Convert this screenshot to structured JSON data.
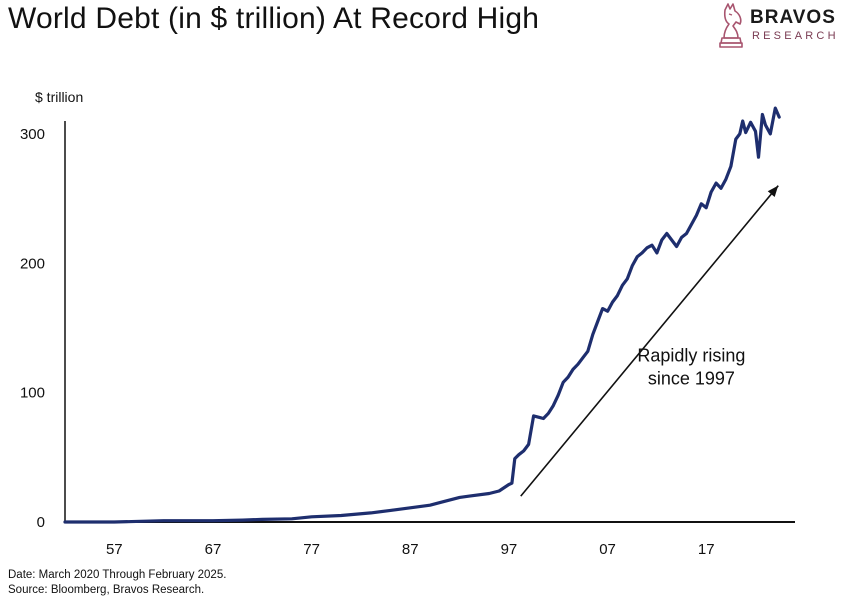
{
  "title": "World Debt (in $ trillion) At Record High",
  "brand": {
    "name": "BRAVOS",
    "sub": "RESEARCH",
    "accent_color": "#a8556f",
    "icon": "horse-chess-knight-icon"
  },
  "chart_data": {
    "type": "line",
    "ylabel": "$ trillion",
    "ylim": [
      0,
      310
    ],
    "xlim": [
      1952,
      2026
    ],
    "yticks": [
      0,
      100,
      200,
      300
    ],
    "xtick_values": [
      1957,
      1967,
      1977,
      1987,
      1997,
      2007,
      2017
    ],
    "xtick_labels": [
      "57",
      "67",
      "77",
      "87",
      "97",
      "07",
      "17"
    ],
    "grid": false,
    "line_color": "#1e2e6e",
    "series": [
      {
        "name": "",
        "x": [
          1952,
          1957,
          1962,
          1967,
          1970,
          1972,
          1975,
          1977,
          1980,
          1983,
          1985,
          1987,
          1989,
          1990,
          1992,
          1993,
          1995,
          1996,
          1997,
          1997.3,
          1997.6,
          1998,
          1998.5,
          1999,
          1999.5,
          2000,
          2000.5,
          2001,
          2001.5,
          2002,
          2002.5,
          2003,
          2003.5,
          2004,
          2004.5,
          2005,
          2005.5,
          2006,
          2006.5,
          2007,
          2007.5,
          2008,
          2008.5,
          2009,
          2009.5,
          2010,
          2010.5,
          2011,
          2011.5,
          2012,
          2012.5,
          2013,
          2013.5,
          2014,
          2014.5,
          2015,
          2015.5,
          2016,
          2016.5,
          2017,
          2017.5,
          2018,
          2018.5,
          2019,
          2019.5,
          2020,
          2020.4,
          2020.7,
          2021,
          2021.5,
          2022,
          2022.3,
          2022.7,
          2023,
          2023.5,
          2024,
          2024.4
        ],
        "values": [
          0,
          0,
          1,
          1,
          1.5,
          2,
          2.5,
          4,
          5,
          7,
          9,
          11,
          13,
          15,
          19,
          20,
          22,
          24,
          29,
          30,
          49,
          52,
          55,
          60,
          82,
          81,
          80,
          84,
          90,
          98,
          108,
          112,
          118,
          122,
          127,
          132,
          145,
          155,
          165,
          163,
          170,
          175,
          183,
          188,
          198,
          205,
          208,
          212,
          214,
          208,
          218,
          223,
          218,
          213,
          220,
          223,
          230,
          237,
          246,
          243,
          255,
          262,
          258,
          265,
          275,
          296,
          300,
          310,
          301,
          309,
          302,
          282,
          315,
          307,
          300,
          320,
          313
        ]
      }
    ],
    "annotation": {
      "text_line1": "Rapidly rising",
      "text_line2": "since 1997",
      "arrow_from": [
        1998.2,
        20
      ],
      "arrow_to": [
        2024.3,
        260
      ],
      "text_at": [
        2015.5,
        110
      ]
    }
  },
  "footer": {
    "line1": "Date: March 2020 Through February 2025.",
    "line2": "Source: Bloomberg, Bravos Research."
  }
}
